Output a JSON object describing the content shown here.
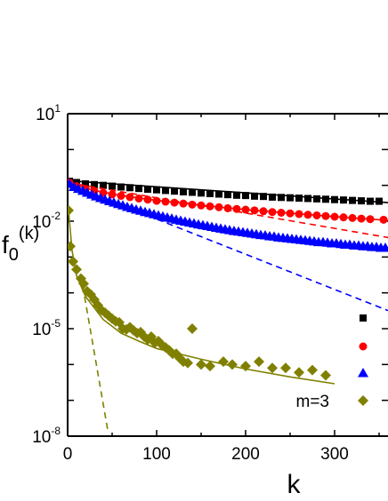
{
  "chart_data": {
    "type": "scatter",
    "title": "",
    "xlabel": "k",
    "ylabel_main": "f",
    "ylabel_sub": "0",
    "ylabel_sup": "(k)",
    "xlim": [
      0,
      360
    ],
    "ylim_log10": [
      -8,
      1
    ],
    "yscale": "log",
    "grid": false,
    "legend_placement": "right",
    "x_ticks": [
      {
        "value": 0,
        "label": "0"
      },
      {
        "value": 100,
        "label": "100"
      },
      {
        "value": 200,
        "label": "200"
      },
      {
        "value": 300,
        "label": "300"
      }
    ],
    "y_ticks": [
      {
        "exp": 1,
        "base": "10",
        "sup": "1"
      },
      {
        "exp": -2,
        "base": "10",
        "sup": "-2"
      },
      {
        "exp": -5,
        "base": "10",
        "sup": "-5"
      },
      {
        "exp": -8,
        "base": "10",
        "sup": "-8"
      }
    ],
    "series": [
      {
        "key": "black",
        "label": "",
        "color": "#000000",
        "marker": "square",
        "points": [
          [
            2,
            0.13
          ],
          [
            10,
            0.12
          ],
          [
            20,
            0.11
          ],
          [
            30,
            0.105
          ],
          [
            40,
            0.1
          ],
          [
            50,
            0.095
          ],
          [
            60,
            0.09
          ],
          [
            70,
            0.086
          ],
          [
            80,
            0.082
          ],
          [
            90,
            0.078
          ],
          [
            100,
            0.075
          ],
          [
            110,
            0.072
          ],
          [
            120,
            0.069
          ],
          [
            130,
            0.066
          ],
          [
            140,
            0.064
          ],
          [
            150,
            0.061
          ],
          [
            160,
            0.059
          ],
          [
            170,
            0.057
          ],
          [
            180,
            0.055
          ],
          [
            190,
            0.053
          ],
          [
            200,
            0.052
          ],
          [
            210,
            0.05
          ],
          [
            220,
            0.049
          ],
          [
            230,
            0.047
          ],
          [
            240,
            0.046
          ],
          [
            250,
            0.045
          ],
          [
            260,
            0.044
          ],
          [
            270,
            0.043
          ],
          [
            280,
            0.042
          ],
          [
            290,
            0.041
          ],
          [
            300,
            0.04
          ],
          [
            310,
            0.039
          ],
          [
            320,
            0.038
          ],
          [
            330,
            0.037
          ],
          [
            340,
            0.036
          ],
          [
            350,
            0.036
          ]
        ],
        "fit_solid": [
          [
            0,
            0.135
          ],
          [
            360,
            0.033
          ]
        ],
        "fit_dashed": []
      },
      {
        "key": "red",
        "label": "",
        "color": "#ff0000",
        "marker": "circle",
        "points": [
          [
            2,
            0.12
          ],
          [
            10,
            0.095
          ],
          [
            20,
            0.08
          ],
          [
            30,
            0.07
          ],
          [
            40,
            0.062
          ],
          [
            50,
            0.056
          ],
          [
            60,
            0.051
          ],
          [
            70,
            0.047
          ],
          [
            80,
            0.043
          ],
          [
            90,
            0.04
          ],
          [
            100,
            0.037
          ],
          [
            110,
            0.035
          ],
          [
            120,
            0.033
          ],
          [
            130,
            0.031
          ],
          [
            140,
            0.029
          ],
          [
            150,
            0.0275
          ],
          [
            160,
            0.026
          ],
          [
            170,
            0.0245
          ],
          [
            180,
            0.023
          ],
          [
            190,
            0.022
          ],
          [
            200,
            0.021
          ],
          [
            210,
            0.02
          ],
          [
            220,
            0.019
          ],
          [
            230,
            0.018
          ],
          [
            240,
            0.0172
          ],
          [
            250,
            0.0165
          ],
          [
            260,
            0.0158
          ],
          [
            270,
            0.0151
          ],
          [
            280,
            0.0145
          ],
          [
            290,
            0.0139
          ],
          [
            300,
            0.0133
          ],
          [
            310,
            0.0128
          ],
          [
            320,
            0.0123
          ],
          [
            330,
            0.0118
          ],
          [
            340,
            0.0114
          ],
          [
            355,
            0.011
          ]
        ],
        "fit_solid": [
          [
            0,
            0.12
          ],
          [
            30,
            0.072
          ],
          [
            60,
            0.052
          ],
          [
            100,
            0.038
          ],
          [
            150,
            0.028
          ],
          [
            200,
            0.021
          ],
          [
            250,
            0.0168
          ],
          [
            300,
            0.0134
          ],
          [
            360,
            0.0105
          ]
        ],
        "fit_dashed": [
          [
            0,
            0.12
          ],
          [
            360,
            0.0035
          ]
        ]
      },
      {
        "key": "blue",
        "label": "",
        "color": "#0000ff",
        "marker": "triangle",
        "points": [
          [
            2,
            0.11
          ],
          [
            7,
            0.09
          ],
          [
            12,
            0.08
          ],
          [
            17,
            0.07
          ],
          [
            22,
            0.062
          ],
          [
            27,
            0.055
          ],
          [
            32,
            0.049
          ],
          [
            37,
            0.044
          ],
          [
            42,
            0.04
          ],
          [
            47,
            0.036
          ],
          [
            52,
            0.033
          ],
          [
            57,
            0.03
          ],
          [
            62,
            0.0275
          ],
          [
            67,
            0.025
          ],
          [
            72,
            0.023
          ],
          [
            77,
            0.021
          ],
          [
            82,
            0.0195
          ],
          [
            87,
            0.018
          ],
          [
            92,
            0.0168
          ],
          [
            97,
            0.0156
          ],
          [
            102,
            0.0145
          ],
          [
            107,
            0.0135
          ],
          [
            112,
            0.0126
          ],
          [
            117,
            0.0118
          ],
          [
            122,
            0.011
          ],
          [
            127,
            0.0103
          ],
          [
            132,
            0.0097
          ],
          [
            137,
            0.0091
          ],
          [
            142,
            0.0086
          ],
          [
            147,
            0.0081
          ],
          [
            152,
            0.0077
          ],
          [
            157,
            0.0073
          ],
          [
            162,
            0.0069
          ],
          [
            167,
            0.0065
          ],
          [
            172,
            0.0062
          ],
          [
            177,
            0.0059
          ],
          [
            182,
            0.0056
          ],
          [
            187,
            0.0053
          ],
          [
            192,
            0.0051
          ],
          [
            197,
            0.0049
          ],
          [
            202,
            0.0047
          ],
          [
            207,
            0.0045
          ],
          [
            212,
            0.0043
          ],
          [
            217,
            0.0041
          ],
          [
            222,
            0.004
          ],
          [
            227,
            0.0038
          ],
          [
            232,
            0.0037
          ],
          [
            237,
            0.0035
          ],
          [
            242,
            0.0034
          ],
          [
            247,
            0.0033
          ],
          [
            252,
            0.0032
          ],
          [
            257,
            0.0031
          ],
          [
            262,
            0.003
          ],
          [
            267,
            0.0029
          ],
          [
            272,
            0.0028
          ],
          [
            277,
            0.0027
          ],
          [
            282,
            0.0026
          ],
          [
            287,
            0.0026
          ],
          [
            292,
            0.0025
          ],
          [
            297,
            0.0024
          ],
          [
            302,
            0.0024
          ],
          [
            307,
            0.0023
          ],
          [
            312,
            0.0022
          ],
          [
            317,
            0.0022
          ],
          [
            322,
            0.0021
          ],
          [
            327,
            0.0021
          ],
          [
            332,
            0.002
          ],
          [
            337,
            0.002
          ],
          [
            342,
            0.0019
          ],
          [
            347,
            0.0019
          ],
          [
            352,
            0.0018
          ],
          [
            357,
            0.0018
          ]
        ],
        "fit_solid": [
          [
            0,
            0.11
          ],
          [
            50,
            0.034
          ],
          [
            100,
            0.015
          ],
          [
            150,
            0.0078
          ],
          [
            200,
            0.0048
          ],
          [
            250,
            0.0032
          ],
          [
            300,
            0.0024
          ],
          [
            360,
            0.0018
          ]
        ],
        "fit_dashed": [
          [
            0,
            0.11
          ],
          [
            360,
            3.2e-05
          ]
        ]
      },
      {
        "key": "olive",
        "label": "m=3",
        "color": "#808000",
        "marker": "diamond",
        "points": [
          [
            1,
            0.02
          ],
          [
            3,
            0.002
          ],
          [
            6,
            0.00075
          ],
          [
            10,
            0.00045
          ],
          [
            15,
            0.00025
          ],
          [
            18,
            0.00018
          ],
          [
            22,
            0.00011
          ],
          [
            26,
            9e-05
          ],
          [
            30,
            6.5e-05
          ],
          [
            34,
            4.5e-05
          ],
          [
            38,
            3.3e-05
          ],
          [
            42,
            2.8e-05
          ],
          [
            46,
            2.3e-05
          ],
          [
            50,
            1.9e-05
          ],
          [
            54,
            1.6e-05
          ],
          [
            58,
            1.5e-05
          ],
          [
            62,
            1e-05
          ],
          [
            66,
            9.5e-06
          ],
          [
            70,
            1.1e-05
          ],
          [
            74,
            9e-06
          ],
          [
            78,
            7.5e-06
          ],
          [
            82,
            8e-06
          ],
          [
            86,
            6e-06
          ],
          [
            90,
            5e-06
          ],
          [
            94,
            6e-06
          ],
          [
            98,
            4e-06
          ],
          [
            102,
            4.5e-06
          ],
          [
            106,
            3.5e-06
          ],
          [
            110,
            3e-06
          ],
          [
            114,
            2.5e-06
          ],
          [
            118,
            2e-06
          ],
          [
            122,
            2e-06
          ],
          [
            126,
            1.5e-06
          ],
          [
            130,
            1.2e-06
          ],
          [
            135,
            1.1e-06
          ],
          [
            140,
            1e-05
          ],
          [
            150,
            1e-06
          ],
          [
            160,
            9e-07
          ],
          [
            175,
            1.2e-06
          ],
          [
            185,
            1e-06
          ],
          [
            200,
            9e-07
          ],
          [
            215,
            1.2e-06
          ],
          [
            230,
            8e-07
          ],
          [
            245,
            8e-07
          ],
          [
            260,
            6e-07
          ],
          [
            275,
            7e-07
          ],
          [
            290,
            5e-07
          ]
        ],
        "fit_solid": [
          [
            1,
            0.02
          ],
          [
            5,
            0.0015
          ],
          [
            10,
            0.0003
          ],
          [
            20,
            8e-05
          ],
          [
            40,
            1.8e-05
          ],
          [
            60,
            7.5e-06
          ],
          [
            80,
            4.5e-06
          ],
          [
            100,
            2.8e-06
          ],
          [
            150,
            1.4e-06
          ],
          [
            200,
            7.5e-07
          ],
          [
            250,
            4.5e-07
          ],
          [
            300,
            2.9e-07
          ]
        ],
        "fit_dashed": [
          [
            15,
            0.0003
          ],
          [
            45,
            1.5e-08
          ]
        ]
      }
    ]
  }
}
